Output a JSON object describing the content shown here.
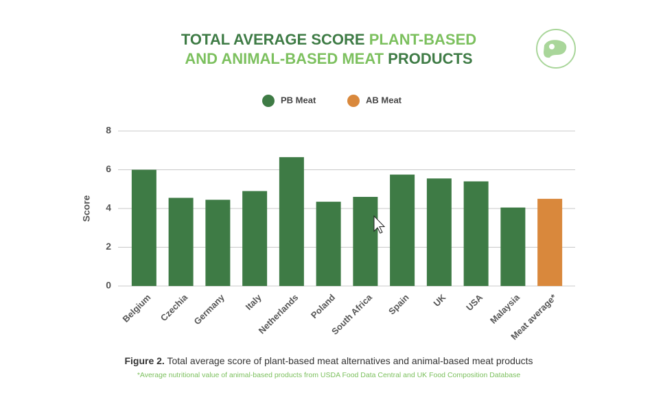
{
  "chart_data": {
    "type": "bar",
    "title": [
      "TOTAL AVERAGE SCORE",
      "PLANT-BASED",
      "AND ANIMAL-BASED MEAT",
      "PRODUCTS"
    ],
    "ylabel": "Score",
    "categories": [
      "Belgium",
      "Czechia",
      "Germany",
      "Italy",
      "Netherlands",
      "Poland",
      "South Africa",
      "Spain",
      "UK",
      "USA",
      "Malaysia",
      "Meat average*"
    ],
    "series": [
      {
        "name": "PB Meat",
        "color": "#3e7b45",
        "values": [
          6.0,
          4.55,
          4.45,
          4.9,
          6.65,
          4.35,
          4.6,
          5.75,
          5.55,
          5.4,
          4.05,
          null
        ]
      },
      {
        "name": "AB Meat",
        "color": "#d9883c",
        "values": [
          null,
          null,
          null,
          null,
          null,
          null,
          null,
          null,
          null,
          null,
          null,
          4.5
        ]
      }
    ],
    "ylim": [
      0,
      8
    ],
    "yticks": [
      0,
      2,
      4,
      6,
      8
    ],
    "grid": true,
    "legend": "top",
    "caption": {
      "label": "Figure 2.",
      "text": "Total average score of plant-based meat alternatives and animal-based meat products"
    },
    "footnote": "*Average nutritional value of animal-based products from USDA Food Data Central and UK Food Composition Database"
  }
}
